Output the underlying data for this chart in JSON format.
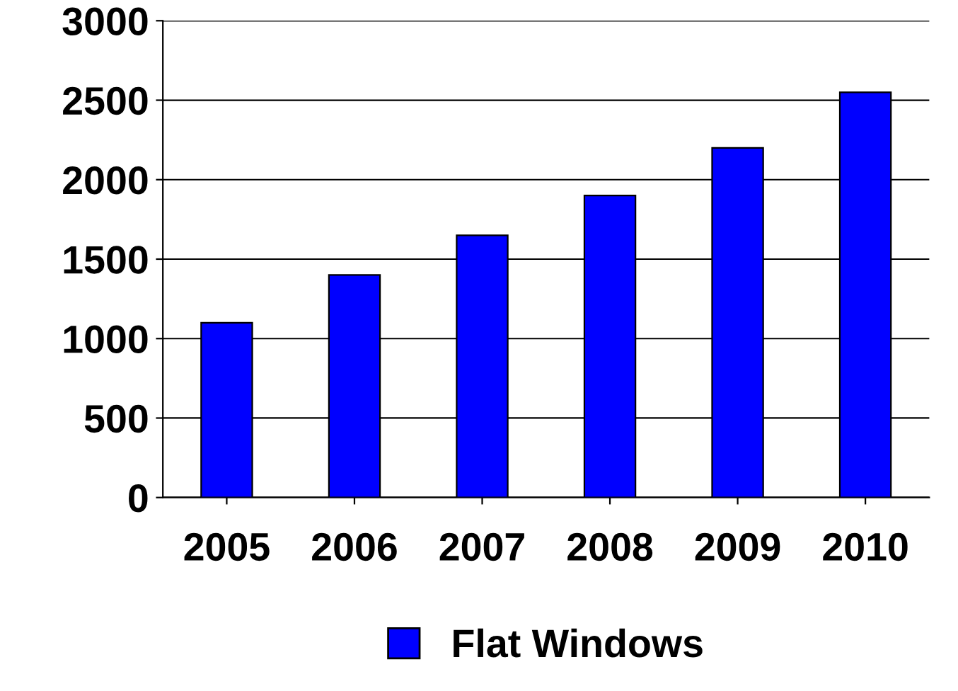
{
  "chart_data": {
    "type": "bar",
    "categories": [
      "2005",
      "2006",
      "2007",
      "2008",
      "2009",
      "2010"
    ],
    "series": [
      {
        "name": "Flat Windows",
        "color": "#0000ff",
        "values": [
          1100,
          1400,
          1650,
          1900,
          2200,
          2550
        ]
      }
    ],
    "ylim": [
      0,
      3000
    ],
    "yticks": [
      0,
      500,
      1000,
      1500,
      2000,
      2500,
      3000
    ],
    "grid": "y",
    "legend": "bottom"
  }
}
